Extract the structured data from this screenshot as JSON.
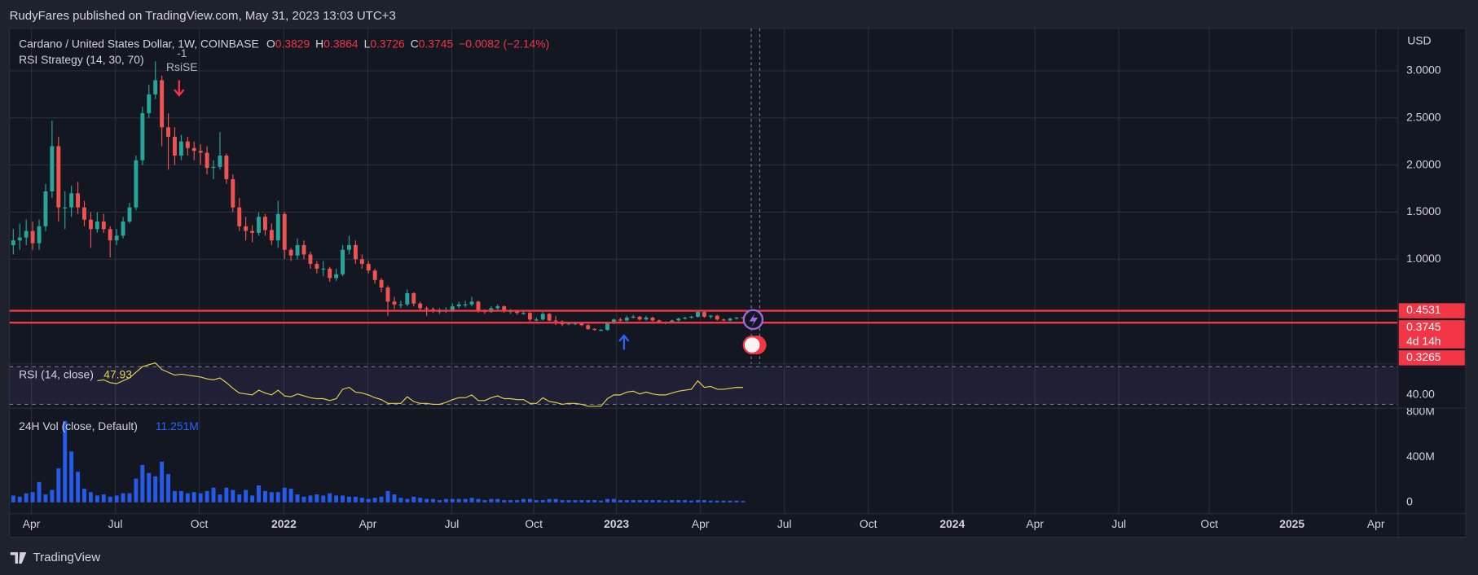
{
  "header": {
    "publisher": "RudyFares published on TradingView.com, May 31, 2023 13:03 UTC+3",
    "brand": "TradingView"
  },
  "chart_data": [
    {
      "type": "candlestick",
      "title": "Cardano / United States Dollar, 1W, COINBASE",
      "ohlc_labels": {
        "open": "O",
        "high": "H",
        "low": "L",
        "close": "C"
      },
      "change": "−0.0082 (−2.14%)",
      "strategy": "RSI Strategy (14, 30, 70)",
      "axis_unit": "USD",
      "annotations": [
        "-1",
        "RsiSE"
      ],
      "countdown": "4d 14h",
      "up_color": "#26a69a",
      "down_color": "#ef5350",
      "level_color": "#f23645",
      "open": [
        1.15,
        1.2,
        1.23,
        1.3,
        1.17,
        1.35,
        1.72,
        2.2,
        1.55,
        1.55,
        1.7,
        1.55,
        1.42,
        1.32,
        1.4,
        1.32,
        1.2,
        1.25,
        1.4,
        1.55,
        2.05,
        2.55,
        2.75,
        2.9,
        2.4,
        2.3,
        2.1,
        2.25,
        2.18,
        2.15,
        2.13,
        1.97,
        1.98,
        2.1,
        1.85,
        1.55,
        1.35,
        1.3,
        1.28,
        1.45,
        1.31,
        1.2,
        1.48,
        1.1,
        1.04,
        1.15,
        1.05,
        0.95,
        0.9,
        0.9,
        0.8,
        0.84,
        1.1,
        1.15,
        1.0,
        0.95,
        0.88,
        0.78,
        0.7,
        0.55,
        0.52,
        0.52,
        0.64,
        0.53,
        0.48,
        0.47,
        0.45,
        0.45,
        0.46,
        0.5,
        0.52,
        0.52,
        0.55,
        0.45,
        0.44,
        0.48,
        0.5,
        0.45,
        0.45,
        0.43,
        0.43,
        0.36,
        0.36,
        0.42,
        0.35,
        0.34,
        0.31,
        0.32,
        0.32,
        0.3,
        0.26,
        0.25,
        0.25,
        0.32,
        0.36,
        0.35,
        0.38,
        0.39,
        0.36,
        0.38,
        0.35,
        0.33,
        0.33,
        0.35,
        0.37,
        0.38,
        0.39,
        0.44,
        0.39,
        0.4,
        0.36,
        0.35,
        0.37,
        0.3829
      ],
      "high": [
        1.32,
        1.38,
        1.42,
        1.4,
        1.42,
        1.8,
        2.47,
        2.3,
        1.72,
        1.78,
        1.82,
        1.62,
        1.5,
        1.5,
        1.48,
        1.35,
        1.32,
        1.45,
        1.6,
        2.1,
        2.62,
        2.85,
        3.1,
        2.95,
        2.55,
        2.4,
        2.32,
        2.3,
        2.25,
        2.22,
        2.2,
        2.05,
        2.35,
        2.12,
        1.9,
        1.65,
        1.45,
        1.36,
        1.5,
        1.48,
        1.38,
        1.62,
        1.5,
        1.12,
        1.22,
        1.2,
        1.08,
        0.98,
        0.98,
        0.92,
        0.9,
        1.15,
        1.25,
        1.2,
        1.05,
        0.98,
        0.9,
        0.8,
        0.72,
        0.6,
        0.56,
        0.68,
        0.65,
        0.55,
        0.5,
        0.49,
        0.48,
        0.49,
        0.53,
        0.55,
        0.56,
        0.6,
        0.56,
        0.47,
        0.5,
        0.52,
        0.51,
        0.47,
        0.46,
        0.45,
        0.44,
        0.38,
        0.44,
        0.43,
        0.4,
        0.35,
        0.33,
        0.33,
        0.33,
        0.31,
        0.27,
        0.26,
        0.33,
        0.37,
        0.38,
        0.4,
        0.41,
        0.4,
        0.4,
        0.39,
        0.36,
        0.34,
        0.36,
        0.38,
        0.39,
        0.4,
        0.46,
        0.45,
        0.41,
        0.41,
        0.37,
        0.38,
        0.39,
        0.3864
      ],
      "low": [
        1.05,
        1.1,
        1.15,
        1.1,
        1.1,
        1.3,
        1.65,
        1.4,
        1.32,
        1.45,
        1.48,
        1.35,
        1.12,
        1.28,
        1.28,
        1.02,
        1.15,
        1.22,
        1.38,
        1.52,
        2.0,
        2.5,
        2.7,
        2.2,
        1.95,
        2.0,
        2.05,
        2.1,
        2.05,
        2.0,
        1.9,
        1.85,
        1.95,
        1.8,
        1.5,
        1.3,
        1.2,
        1.18,
        1.25,
        1.25,
        1.15,
        1.12,
        1.0,
        0.98,
        1.0,
        1.0,
        0.9,
        0.85,
        0.82,
        0.76,
        0.77,
        0.82,
        1.05,
        0.95,
        0.9,
        0.85,
        0.74,
        0.65,
        0.4,
        0.47,
        0.48,
        0.5,
        0.5,
        0.45,
        0.4,
        0.43,
        0.42,
        0.43,
        0.44,
        0.48,
        0.49,
        0.5,
        0.43,
        0.42,
        0.43,
        0.46,
        0.43,
        0.42,
        0.41,
        0.41,
        0.34,
        0.34,
        0.35,
        0.34,
        0.3,
        0.29,
        0.3,
        0.3,
        0.29,
        0.25,
        0.24,
        0.24,
        0.24,
        0.31,
        0.33,
        0.34,
        0.37,
        0.35,
        0.35,
        0.34,
        0.32,
        0.31,
        0.32,
        0.34,
        0.36,
        0.37,
        0.38,
        0.38,
        0.37,
        0.35,
        0.34,
        0.34,
        0.36,
        0.3726
      ],
      "close": [
        1.2,
        1.23,
        1.3,
        1.17,
        1.35,
        1.72,
        2.2,
        1.55,
        1.55,
        1.7,
        1.55,
        1.42,
        1.32,
        1.4,
        1.32,
        1.2,
        1.25,
        1.4,
        1.55,
        2.05,
        2.55,
        2.75,
        2.9,
        2.4,
        2.3,
        2.1,
        2.25,
        2.18,
        2.15,
        2.13,
        1.97,
        1.98,
        2.1,
        1.85,
        1.55,
        1.35,
        1.3,
        1.28,
        1.45,
        1.31,
        1.2,
        1.48,
        1.1,
        1.04,
        1.15,
        1.05,
        0.95,
        0.9,
        0.9,
        0.8,
        0.84,
        1.1,
        1.15,
        1.0,
        0.95,
        0.88,
        0.78,
        0.7,
        0.55,
        0.52,
        0.52,
        0.64,
        0.53,
        0.48,
        0.47,
        0.45,
        0.45,
        0.46,
        0.5,
        0.52,
        0.52,
        0.55,
        0.45,
        0.44,
        0.48,
        0.5,
        0.45,
        0.45,
        0.43,
        0.43,
        0.36,
        0.36,
        0.42,
        0.35,
        0.34,
        0.31,
        0.32,
        0.32,
        0.3,
        0.26,
        0.25,
        0.25,
        0.32,
        0.36,
        0.35,
        0.38,
        0.39,
        0.36,
        0.38,
        0.35,
        0.33,
        0.33,
        0.35,
        0.37,
        0.38,
        0.39,
        0.44,
        0.39,
        0.4,
        0.36,
        0.35,
        0.37,
        0.38,
        0.3745
      ],
      "ylim": [
        -0.1,
        3.45
      ],
      "yticks": [
        {
          "value": 1,
          "label": "1.0000"
        },
        {
          "value": 1.5,
          "label": "1.5000"
        },
        {
          "value": 2,
          "label": "2.0000"
        },
        {
          "value": 2.5,
          "label": "2.5000"
        },
        {
          "value": 3,
          "label": "3.0000"
        }
      ],
      "levels": [
        0.4531,
        0.3265
      ],
      "xlim": [
        -0.6,
        214.4
      ],
      "xticks": [
        {
          "value": 2.8,
          "label": "Apr"
        },
        {
          "value": 15.8,
          "label": "Jul"
        },
        {
          "value": 28.8,
          "label": "Oct"
        },
        {
          "value": 41.9,
          "label": "2022"
        },
        {
          "value": 54.9,
          "label": "Apr"
        },
        {
          "value": 67.9,
          "label": "Jul"
        },
        {
          "value": 80.6,
          "label": "Oct"
        },
        {
          "value": 93.4,
          "label": "2023"
        },
        {
          "value": 106.4,
          "label": "Apr"
        },
        {
          "value": 119.4,
          "label": "Jul"
        },
        {
          "value": 132.4,
          "label": "Oct"
        },
        {
          "value": 145.4,
          "label": "2024"
        },
        {
          "value": 158.2,
          "label": "Apr"
        },
        {
          "value": 171.2,
          "label": "Jul"
        },
        {
          "value": 185.2,
          "label": "Oct"
        },
        {
          "value": 198,
          "label": "2025"
        },
        {
          "value": 211,
          "label": "Apr"
        }
      ],
      "grid": true
    },
    {
      "type": "line",
      "title": "RSI (14, close)",
      "color": "#e6d34a",
      "band_color": "#7e57c2",
      "values": [
        null,
        null,
        null,
        null,
        null,
        null,
        null,
        null,
        null,
        null,
        null,
        null,
        null,
        55,
        56,
        53,
        52,
        55,
        58,
        64,
        70,
        72,
        74,
        67,
        64,
        61,
        62,
        61,
        60,
        59,
        57,
        56,
        58,
        53,
        47,
        42,
        41,
        40,
        45,
        42,
        40,
        45,
        39,
        38,
        41,
        39,
        37,
        36,
        36,
        34,
        36,
        46,
        48,
        43,
        42,
        40,
        37,
        35,
        31,
        31,
        31,
        38,
        33,
        31,
        31,
        30,
        30,
        32,
        35,
        37,
        37,
        40,
        34,
        34,
        37,
        39,
        36,
        36,
        35,
        35,
        31,
        31,
        37,
        33,
        32,
        30,
        31,
        31,
        30,
        28,
        28,
        28,
        36,
        40,
        40,
        43,
        44,
        41,
        43,
        41,
        40,
        40,
        42,
        44,
        45,
        46,
        55,
        48,
        49,
        46,
        46,
        47,
        48,
        47.93
      ],
      "ylim": [
        27,
        72
      ],
      "yticks": [
        {
          "value": 40,
          "label": "40.00"
        }
      ],
      "bands": [
        30,
        70
      ]
    },
    {
      "type": "bar",
      "title": "24H Vol (close, Default)",
      "color": "#2962ff",
      "last_value_label": "11.251M",
      "values": [
        60,
        50,
        80,
        90,
        180,
        70,
        110,
        300,
        720,
        450,
        270,
        120,
        90,
        60,
        70,
        50,
        60,
        80,
        80,
        210,
        330,
        260,
        230,
        360,
        250,
        100,
        100,
        80,
        90,
        80,
        100,
        130,
        70,
        130,
        110,
        70,
        110,
        60,
        150,
        100,
        90,
        90,
        130,
        120,
        70,
        50,
        60,
        70,
        60,
        80,
        60,
        60,
        50,
        50,
        40,
        30,
        40,
        50,
        100,
        70,
        40,
        30,
        50,
        40,
        30,
        30,
        20,
        30,
        30,
        30,
        30,
        40,
        30,
        20,
        30,
        30,
        20,
        20,
        20,
        30,
        30,
        20,
        20,
        30,
        30,
        20,
        20,
        20,
        20,
        20,
        20,
        15,
        30,
        30,
        20,
        20,
        20,
        20,
        20,
        20,
        20,
        15,
        20,
        20,
        20,
        15,
        20,
        20,
        15,
        15,
        15,
        15,
        15,
        11.251
      ],
      "ylim": [
        -100,
        817
      ],
      "yticks": [
        0,
        {
          "value": 400,
          "label": "400M"
        },
        {
          "value": 800,
          "label": "800M"
        }
      ]
    }
  ]
}
